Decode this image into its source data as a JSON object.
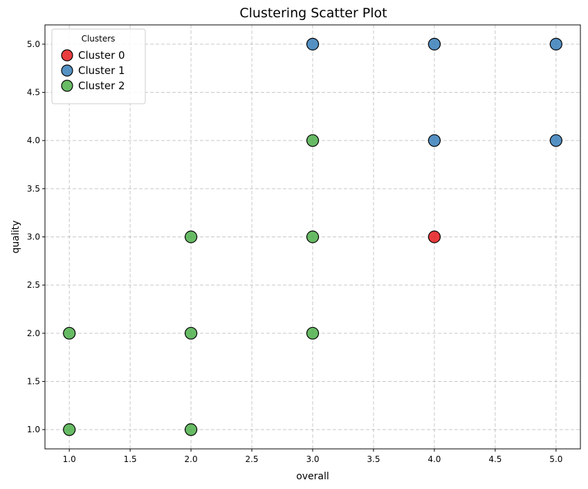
{
  "chart_data": {
    "type": "scatter",
    "title": "Clustering Scatter Plot",
    "xlabel": "overall",
    "ylabel": "quality",
    "xlim": [
      0.8,
      5.2
    ],
    "ylim": [
      0.8,
      5.2
    ],
    "xticks": [
      "1.0",
      "1.5",
      "2.0",
      "2.5",
      "3.0",
      "3.5",
      "4.0",
      "4.5",
      "5.0"
    ],
    "yticks": [
      "1.0",
      "1.5",
      "2.0",
      "2.5",
      "3.0",
      "3.5",
      "4.0",
      "4.5",
      "5.0"
    ],
    "grid": true,
    "legend": {
      "title": "Clusters",
      "placement": "top-left"
    },
    "series": [
      {
        "name": "Cluster 0",
        "color": "#e41a1c",
        "points": [
          [
            4,
            3
          ]
        ]
      },
      {
        "name": "Cluster 1",
        "color": "#377eb8",
        "points": [
          [
            3,
            5
          ],
          [
            4,
            5
          ],
          [
            5,
            5
          ],
          [
            4,
            4
          ],
          [
            5,
            4
          ]
        ]
      },
      {
        "name": "Cluster 2",
        "color": "#4daf4a",
        "points": [
          [
            3,
            4
          ],
          [
            2,
            3
          ],
          [
            3,
            3
          ],
          [
            1,
            2
          ],
          [
            2,
            2
          ],
          [
            3,
            2
          ],
          [
            1,
            1
          ],
          [
            2,
            1
          ]
        ]
      }
    ]
  }
}
